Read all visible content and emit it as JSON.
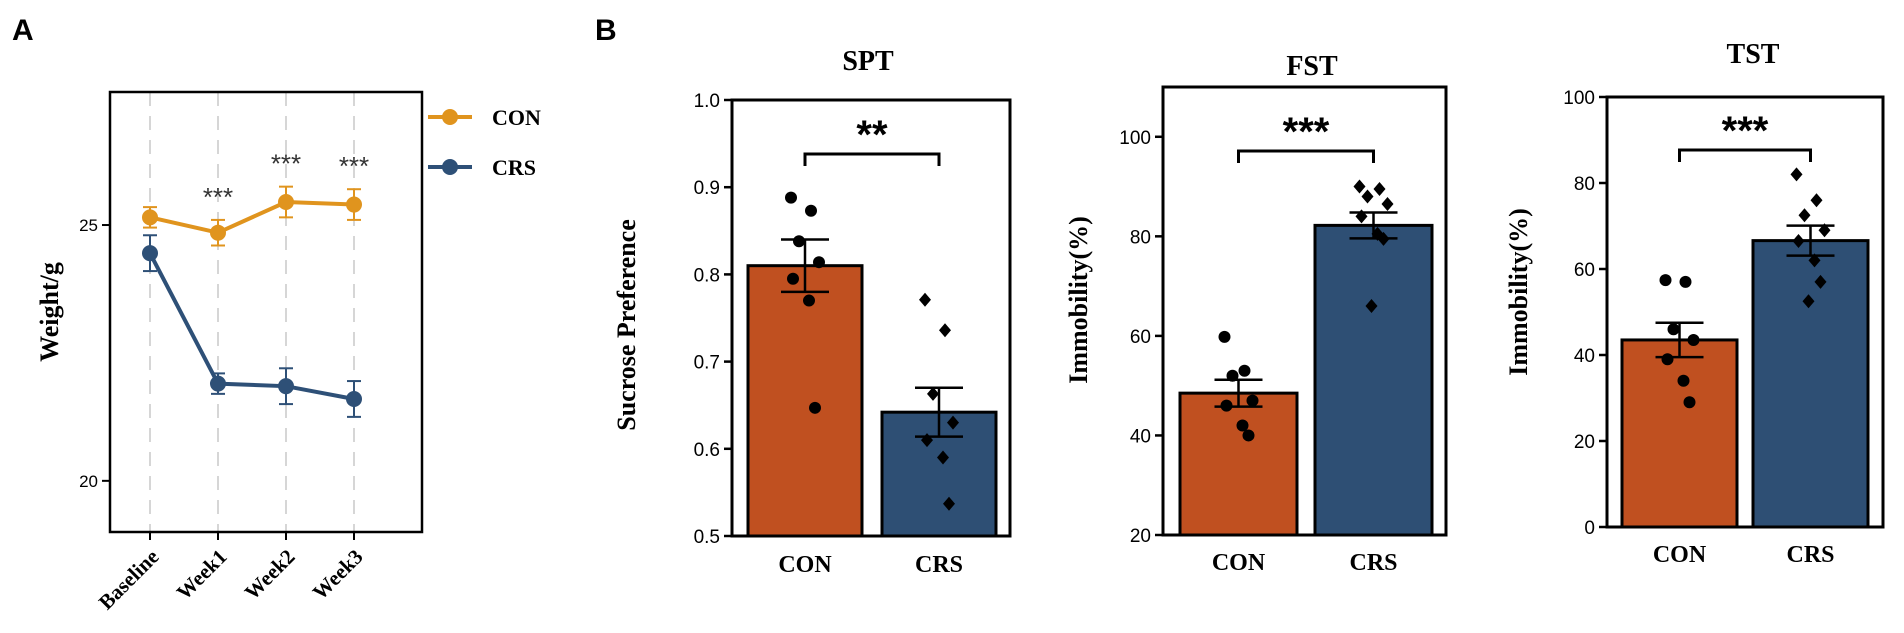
{
  "panels": {
    "A": "A",
    "B": "B"
  },
  "colors": {
    "con": "#E0941E",
    "crs": "#2E5077",
    "bar_con": "#C05020",
    "bar_crs": "#2E4F74"
  },
  "chart_data": [
    {
      "id": "weight",
      "type": "line",
      "title": "",
      "xlabel": "",
      "ylabel": "Weight/g",
      "categories": [
        "Baseline",
        "Week1",
        "Week2",
        "Week3"
      ],
      "ylim": [
        19.0,
        27.6
      ],
      "yticks": [
        20,
        25
      ],
      "legend": [
        "CON",
        "CRS"
      ],
      "legend_position": "right",
      "series": [
        {
          "name": "CON",
          "values": [
            25.15,
            24.85,
            25.45,
            25.4
          ],
          "errors": [
            0.2,
            0.25,
            0.3,
            0.3
          ]
        },
        {
          "name": "CRS",
          "values": [
            24.45,
            21.9,
            21.85,
            21.6
          ],
          "errors": [
            0.35,
            0.2,
            0.35,
            0.35
          ]
        }
      ],
      "annotations": [
        {
          "category": "Week1",
          "text": "***"
        },
        {
          "category": "Week2",
          "text": "***"
        },
        {
          "category": "Week3",
          "text": "***"
        }
      ]
    },
    {
      "id": "spt",
      "type": "bar",
      "title": "SPT",
      "xlabel": "",
      "ylabel": "Sucrose Preference",
      "categories": [
        "CON",
        "CRS"
      ],
      "ylim": [
        0.5,
        1.0
      ],
      "yticks": [
        "0.5",
        "0.6",
        "0.7",
        "0.8",
        "0.9",
        "1.0"
      ],
      "values": [
        0.81,
        0.642
      ],
      "errors": [
        0.03,
        0.028
      ],
      "points": [
        [
          0.888,
          0.873,
          0.838,
          0.814,
          0.795,
          0.77,
          0.647
        ],
        [
          0.771,
          0.736,
          0.663,
          0.63,
          0.61,
          0.59,
          0.537
        ]
      ],
      "significance": "**"
    },
    {
      "id": "fst",
      "type": "bar",
      "title": "FST",
      "xlabel": "",
      "ylabel": "Immobility(%)",
      "categories": [
        "CON",
        "CRS"
      ],
      "ylim": [
        20,
        110
      ],
      "yticks": [
        "20",
        "40",
        "60",
        "80",
        "100"
      ],
      "values": [
        48.5,
        82.2
      ],
      "errors": [
        2.7,
        2.6
      ],
      "points": [
        [
          59.8,
          53.0,
          52.0,
          47.0,
          46.0,
          42.0,
          40.0
        ],
        [
          90.0,
          89.5,
          88.0,
          86.5,
          84.0,
          80.5,
          79.5,
          66.0
        ]
      ],
      "significance": "***"
    },
    {
      "id": "tst",
      "type": "bar",
      "title": "TST",
      "xlabel": "",
      "ylabel": "Immobility(%)",
      "categories": [
        "CON",
        "CRS"
      ],
      "ylim": [
        0,
        100
      ],
      "yticks": [
        "0",
        "20",
        "40",
        "60",
        "80",
        "100"
      ],
      "values": [
        43.5,
        66.6
      ],
      "errors": [
        4.0,
        3.5
      ],
      "points": [
        [
          57.4,
          57.0,
          46.0,
          43.5,
          39.0,
          34.0,
          29.0
        ],
        [
          82.0,
          76.0,
          72.5,
          69.0,
          66.5,
          62.0,
          57.0,
          52.5
        ]
      ],
      "significance": "***"
    }
  ]
}
